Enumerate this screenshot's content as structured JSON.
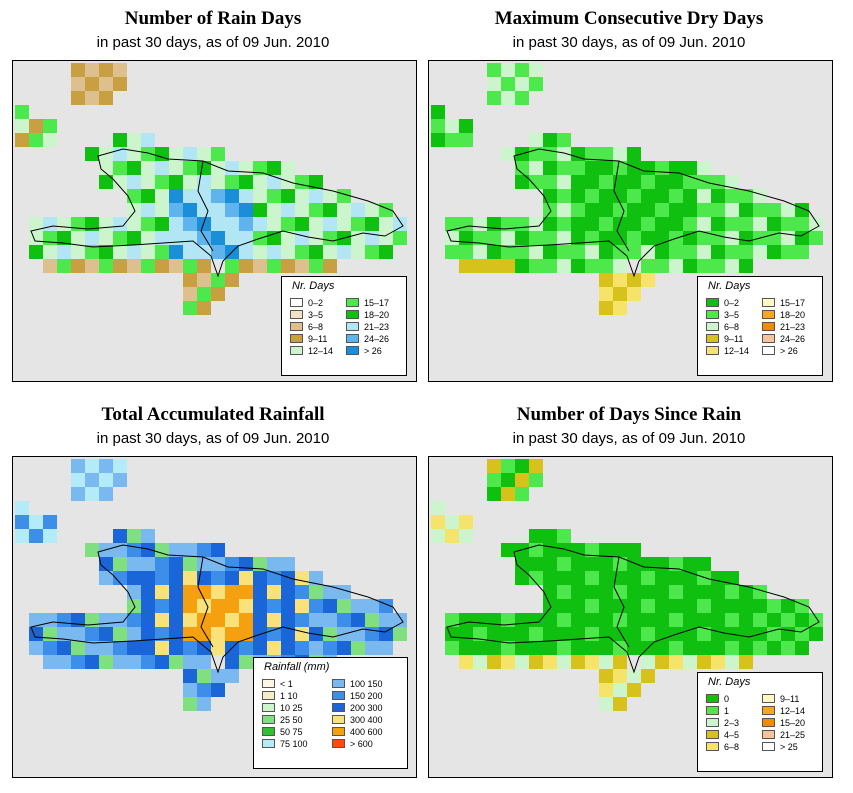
{
  "panels": [
    {
      "title": "Number of Rain Days",
      "subtitle": "in past 30 days, as of  09 Jun. 2010",
      "legend": {
        "title": "Nr. Days",
        "items": [
          {
            "label": "0–2",
            "color": "#ffffff"
          },
          {
            "label": "3–5",
            "color": "#f2e2c4"
          },
          {
            "label": "6–8",
            "color": "#dec08e"
          },
          {
            "label": "9–11",
            "color": "#c8a042"
          },
          {
            "label": "12–14",
            "color": "#cdf5cd"
          },
          {
            "label": "15–17",
            "color": "#4ce84c"
          },
          {
            "label": "18–20",
            "color": "#10c010"
          },
          {
            "label": "21–23",
            "color": "#b3e6f5"
          },
          {
            "label": "24–26",
            "color": "#5fb4ee"
          },
          {
            "label": "> 26",
            "color": "#1a8ed6"
          }
        ]
      }
    },
    {
      "title": "Maximum Consecutive Dry Days",
      "subtitle": "in past 30 days, as of  09 Jun. 2010",
      "legend": {
        "title": "Nr. Days",
        "items": [
          {
            "label": "0–2",
            "color": "#10c010"
          },
          {
            "label": "3–5",
            "color": "#4ce84c"
          },
          {
            "label": "6–8",
            "color": "#cdf5cd"
          },
          {
            "label": "9–11",
            "color": "#d6c21a"
          },
          {
            "label": "12–14",
            "color": "#f5e36a"
          },
          {
            "label": "15–17",
            "color": "#fff8c0"
          },
          {
            "label": "18–20",
            "color": "#f5a623"
          },
          {
            "label": "21–23",
            "color": "#f08c00"
          },
          {
            "label": "24–26",
            "color": "#f5c49a"
          },
          {
            "label": "> 26",
            "color": "#ffffff"
          }
        ]
      }
    },
    {
      "title": "Total Accumulated Rainfall",
      "subtitle": "in past 30 days, as of  09 Jun. 2010",
      "legend": {
        "title": "Rainfall (mm)",
        "items": [
          {
            "label": "< 1",
            "color": "#fff5e6"
          },
          {
            "label": "1    10",
            "color": "#f5ecc8"
          },
          {
            "label": "10    25",
            "color": "#ccf5cc"
          },
          {
            "label": "25    50",
            "color": "#80e080"
          },
          {
            "label": "50    75",
            "color": "#30c030"
          },
          {
            "label": "75   100",
            "color": "#b3ecf8"
          },
          {
            "label": "100   150",
            "color": "#7ab8f0"
          },
          {
            "label": "150   200",
            "color": "#3d8ee8"
          },
          {
            "label": "200   300",
            "color": "#1a66d9"
          },
          {
            "label": "300   400",
            "color": "#fae27a"
          },
          {
            "label": "400   600",
            "color": "#f5a00f"
          },
          {
            "label": "> 600",
            "color": "#ff4a00"
          }
        ]
      }
    },
    {
      "title": "Number of Days Since Rain",
      "subtitle": "in past 30 days, as of  09 Jun. 2010",
      "legend": {
        "title": "Nr. Days",
        "items": [
          {
            "label": "0",
            "color": "#10c010"
          },
          {
            "label": "1",
            "color": "#4ce84c"
          },
          {
            "label": "2–3",
            "color": "#cdf5cd"
          },
          {
            "label": "4–5",
            "color": "#d6c21a"
          },
          {
            "label": "6–8",
            "color": "#f5e36a"
          },
          {
            "label": "9–11",
            "color": "#fff8c0"
          },
          {
            "label": "12–14",
            "color": "#f5a623"
          },
          {
            "label": "15–20",
            "color": "#f08c00"
          },
          {
            "label": "21–25",
            "color": "#f5c49a"
          },
          {
            "label": "> 25",
            "color": "#ffffff"
          }
        ]
      }
    }
  ]
}
